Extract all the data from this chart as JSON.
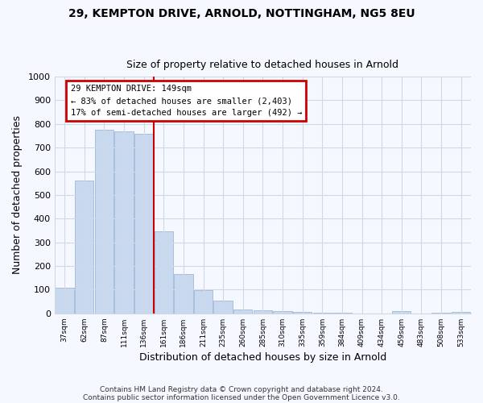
{
  "title1": "29, KEMPTON DRIVE, ARNOLD, NOTTINGHAM, NG5 8EU",
  "title2": "Size of property relative to detached houses in Arnold",
  "xlabel": "Distribution of detached houses by size in Arnold",
  "ylabel": "Number of detached properties",
  "categories": [
    "37sqm",
    "62sqm",
    "87sqm",
    "111sqm",
    "136sqm",
    "161sqm",
    "186sqm",
    "211sqm",
    "235sqm",
    "260sqm",
    "285sqm",
    "310sqm",
    "335sqm",
    "359sqm",
    "384sqm",
    "409sqm",
    "434sqm",
    "459sqm",
    "483sqm",
    "508sqm",
    "533sqm"
  ],
  "values": [
    110,
    560,
    775,
    770,
    760,
    345,
    165,
    97,
    55,
    18,
    12,
    10,
    5,
    4,
    3,
    0,
    0,
    10,
    0,
    3,
    5
  ],
  "bar_color": "#c8d8ee",
  "bar_edge_color": "#a0b8d8",
  "property_line_color": "#cc0000",
  "property_line_x": 4.5,
  "annotation_title": "29 KEMPTON DRIVE: 149sqm",
  "annotation_line1": "← 83% of detached houses are smaller (2,403)",
  "annotation_line2": "17% of semi-detached houses are larger (492) →",
  "annotation_box_edge_color": "#cc0000",
  "annotation_box_face_color": "#ffffff",
  "ylim": [
    0,
    1000
  ],
  "yticks": [
    0,
    100,
    200,
    300,
    400,
    500,
    600,
    700,
    800,
    900,
    1000
  ],
  "background_color": "#f5f8ff",
  "grid_color": "#d0d8e8",
  "footer1": "Contains HM Land Registry data © Crown copyright and database right 2024.",
  "footer2": "Contains public sector information licensed under the Open Government Licence v3.0."
}
